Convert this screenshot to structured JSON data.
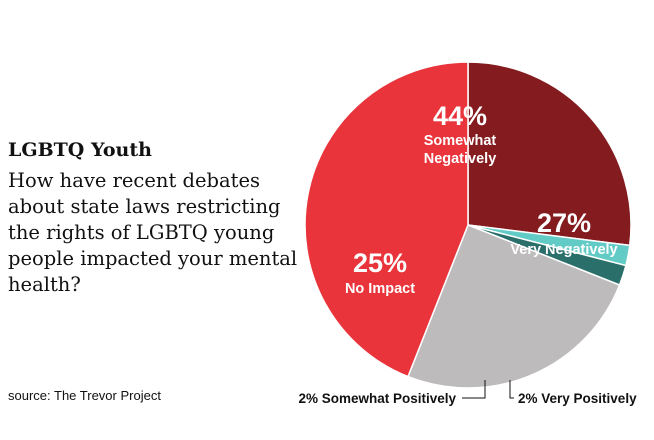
{
  "header": {
    "title": "LGBTQ Youth",
    "question": "How have recent debates about state laws restricting the rights of LGBTQ young people impacted your mental health?"
  },
  "footer": {
    "source": "source: The Trevor Project"
  },
  "chart_data": {
    "type": "pie",
    "title": "LGBTQ Youth",
    "subtitle": "How have recent debates about state laws restricting the rights of LGBTQ young people impacted your mental health?",
    "start_angle_deg": 0,
    "direction": "clockwise",
    "slices": [
      {
        "label": "Very Negatively",
        "value": 27,
        "value_text": "27%",
        "color": "#841c1f"
      },
      {
        "label": "Very Positively",
        "value": 2,
        "value_text": "2%",
        "color": "#63cbc6"
      },
      {
        "label": "Somewhat Positively",
        "value": 2,
        "value_text": "2%",
        "color": "#2b6f6b"
      },
      {
        "label": "No Impact",
        "value": 25,
        "value_text": "25%",
        "color": "#bdbbbc"
      },
      {
        "label": "Somewhat Negatively",
        "value": 44,
        "value_text": "44%",
        "color": "#e8343a"
      }
    ],
    "callouts": {
      "somewhat_positively": "2% Somewhat Positively",
      "very_positively": "2% Very Positively"
    }
  }
}
